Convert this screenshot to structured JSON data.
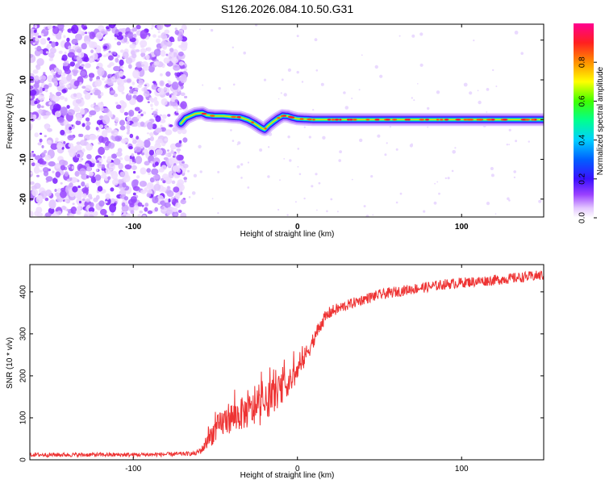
{
  "title": "S126.2026.084.10.50.G31",
  "chart_data": [
    {
      "type": "heatmap",
      "xlabel": "Height of straight line (km)",
      "ylabel": "Frequency (Hz)",
      "xlim": [
        -163,
        150
      ],
      "ylim": [
        -24.5,
        24
      ],
      "xticks": [
        -100,
        0,
        100
      ],
      "yticks": [
        -20,
        -10,
        0,
        10,
        20
      ],
      "grid": false,
      "noise_region_x": [
        -163,
        -68
      ],
      "ridge": {
        "x": [
          -71,
          -68,
          -62,
          -58,
          -55,
          -50,
          -45,
          -40,
          -35,
          -30,
          -26,
          -22,
          -20,
          -18,
          -15,
          -12,
          -9,
          -6,
          -3,
          0,
          5,
          10,
          20,
          40,
          60,
          80,
          100,
          120,
          140,
          150
        ],
        "y": [
          -1.0,
          0.4,
          1.5,
          1.7,
          1.1,
          0.9,
          0.9,
          0.7,
          0.6,
          -0.1,
          -1.0,
          -2.1,
          -2.5,
          -1.6,
          -0.6,
          0.3,
          1.0,
          0.9,
          0.5,
          0.2,
          0.1,
          0.0,
          0.0,
          0.0,
          0.0,
          0.0,
          0.0,
          0.0,
          0.0,
          0.0
        ]
      },
      "colorbar": {
        "label": "Normalized spectral amplitude",
        "range": [
          0,
          1
        ],
        "ticks": [
          "0.0",
          "0.2",
          "0.4",
          "0.6",
          "0.8"
        ]
      }
    },
    {
      "type": "line",
      "xlabel": "Height of straight line (km)",
      "ylabel": "SNR (10 * v/v)",
      "xlim": [
        -163,
        150
      ],
      "ylim": [
        0,
        465
      ],
      "xticks": [
        -100,
        0,
        100
      ],
      "yticks": [
        0,
        100,
        200,
        300,
        400
      ],
      "grid": false,
      "series": [
        {
          "name": "SNR",
          "color": "#ee3333",
          "x": [
            -163,
            -140,
            -120,
            -100,
            -80,
            -62,
            -58,
            -55,
            -52,
            -48,
            -45,
            -42,
            -38,
            -35,
            -32,
            -28,
            -25,
            -22,
            -20,
            -18,
            -15,
            -12,
            -9,
            -5,
            -2,
            0,
            3,
            5,
            8,
            10,
            13,
            15,
            18,
            20,
            25,
            30,
            35,
            40,
            45,
            50,
            60,
            70,
            80,
            90,
            100,
            110,
            120,
            130,
            140,
            150
          ],
          "y": [
            12,
            12,
            12,
            12,
            13,
            15,
            25,
            45,
            62,
            78,
            90,
            100,
            102,
            108,
            112,
            118,
            120,
            124,
            132,
            140,
            150,
            160,
            172,
            185,
            198,
            212,
            230,
            250,
            272,
            290,
            312,
            330,
            342,
            352,
            360,
            368,
            375,
            382,
            388,
            393,
            400,
            407,
            412,
            418,
            422,
            425,
            428,
            432,
            436,
            440
          ],
          "noise_amplitude": [
            10,
            10,
            10,
            10,
            10,
            10,
            20,
            40,
            55,
            65,
            70,
            75,
            75,
            78,
            80,
            82,
            82,
            82,
            82,
            80,
            78,
            75,
            70,
            60,
            55,
            50,
            48,
            45,
            42,
            40,
            38,
            35,
            32,
            30,
            28,
            25,
            25,
            25,
            25,
            25,
            25,
            25,
            25,
            25,
            25,
            25,
            25,
            25,
            25,
            25
          ]
        }
      ]
    }
  ]
}
